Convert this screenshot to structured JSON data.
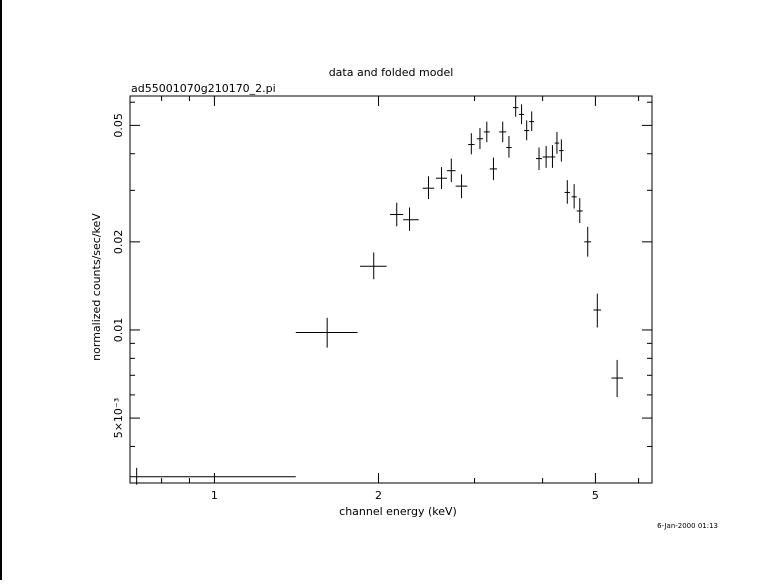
{
  "chart_data": {
    "type": "scatter",
    "title": "data and folded model",
    "subtitle": "ad55001070g210170_2.pi",
    "xlabel": "channel energy (keV)",
    "ylabel": "normalized counts/sec/keV",
    "x_scale": "log",
    "y_scale": "log",
    "xlim": [
      0.7,
      6.35
    ],
    "ylim": [
      0.003,
      0.063
    ],
    "x_ticks": [
      {
        "value": 1,
        "label": "1"
      },
      {
        "value": 2,
        "label": "2"
      },
      {
        "value": 5,
        "label": "5"
      }
    ],
    "y_ticks": [
      {
        "value": 0.005,
        "label": "5×10⁻³"
      },
      {
        "value": 0.01,
        "label": "0.01"
      },
      {
        "value": 0.02,
        "label": "0.02"
      },
      {
        "value": 0.05,
        "label": "0.05"
      }
    ],
    "grid": false,
    "series": [
      {
        "points": [
          {
            "x": 0.72,
            "xlo": 0.7,
            "xhi": 1.41,
            "y": 0.00315,
            "ylo": 0.00296,
            "yhi": 0.00338
          },
          {
            "x": 1.61,
            "xlo": 1.41,
            "xhi": 1.83,
            "y": 0.0098,
            "ylo": 0.0087,
            "yhi": 0.011
          },
          {
            "x": 1.96,
            "xlo": 1.85,
            "xhi": 2.07,
            "y": 0.0165,
            "ylo": 0.0149,
            "yhi": 0.0184
          },
          {
            "x": 2.16,
            "xlo": 2.1,
            "xhi": 2.22,
            "y": 0.0248,
            "ylo": 0.0226,
            "yhi": 0.0272
          },
          {
            "x": 2.28,
            "xlo": 2.22,
            "xhi": 2.37,
            "y": 0.0238,
            "ylo": 0.0218,
            "yhi": 0.0262
          },
          {
            "x": 2.47,
            "xlo": 2.41,
            "xhi": 2.53,
            "y": 0.0305,
            "ylo": 0.028,
            "yhi": 0.0335
          },
          {
            "x": 2.61,
            "xlo": 2.55,
            "xhi": 2.67,
            "y": 0.033,
            "ylo": 0.0303,
            "yhi": 0.036
          },
          {
            "x": 2.72,
            "xlo": 2.67,
            "xhi": 2.77,
            "y": 0.035,
            "ylo": 0.032,
            "yhi": 0.0385
          },
          {
            "x": 2.84,
            "xlo": 2.77,
            "xhi": 2.91,
            "y": 0.031,
            "ylo": 0.0282,
            "yhi": 0.034
          },
          {
            "x": 2.96,
            "xlo": 2.92,
            "xhi": 3.0,
            "y": 0.043,
            "ylo": 0.0398,
            "yhi": 0.047
          },
          {
            "x": 3.07,
            "xlo": 3.03,
            "xhi": 3.11,
            "y": 0.045,
            "ylo": 0.0415,
            "yhi": 0.049
          },
          {
            "x": 3.16,
            "xlo": 3.12,
            "xhi": 3.2,
            "y": 0.0475,
            "ylo": 0.0438,
            "yhi": 0.0515
          },
          {
            "x": 3.25,
            "xlo": 3.2,
            "xhi": 3.3,
            "y": 0.0355,
            "ylo": 0.0325,
            "yhi": 0.0388
          },
          {
            "x": 3.38,
            "xlo": 3.33,
            "xhi": 3.43,
            "y": 0.0475,
            "ylo": 0.0438,
            "yhi": 0.0515
          },
          {
            "x": 3.47,
            "xlo": 3.43,
            "xhi": 3.51,
            "y": 0.042,
            "ylo": 0.0388,
            "yhi": 0.046
          },
          {
            "x": 3.57,
            "xlo": 3.53,
            "xhi": 3.61,
            "y": 0.0575,
            "ylo": 0.0535,
            "yhi": 0.063
          },
          {
            "x": 3.66,
            "xlo": 3.62,
            "xhi": 3.7,
            "y": 0.0545,
            "ylo": 0.0505,
            "yhi": 0.059
          },
          {
            "x": 3.74,
            "xlo": 3.7,
            "xhi": 3.78,
            "y": 0.048,
            "ylo": 0.0445,
            "yhi": 0.052
          },
          {
            "x": 3.82,
            "xlo": 3.78,
            "xhi": 3.86,
            "y": 0.0515,
            "ylo": 0.0478,
            "yhi": 0.0558
          },
          {
            "x": 3.94,
            "xlo": 3.89,
            "xhi": 3.99,
            "y": 0.0385,
            "ylo": 0.0352,
            "yhi": 0.042
          },
          {
            "x": 4.06,
            "xlo": 4.0,
            "xhi": 4.12,
            "y": 0.039,
            "ylo": 0.0358,
            "yhi": 0.0425
          },
          {
            "x": 4.17,
            "xlo": 4.12,
            "xhi": 4.22,
            "y": 0.039,
            "ylo": 0.0358,
            "yhi": 0.0428
          },
          {
            "x": 4.25,
            "xlo": 4.21,
            "xhi": 4.29,
            "y": 0.0435,
            "ylo": 0.04,
            "yhi": 0.0475
          },
          {
            "x": 4.33,
            "xlo": 4.29,
            "xhi": 4.37,
            "y": 0.041,
            "ylo": 0.0376,
            "yhi": 0.0448
          },
          {
            "x": 4.44,
            "xlo": 4.39,
            "xhi": 4.49,
            "y": 0.0295,
            "ylo": 0.027,
            "yhi": 0.0325
          },
          {
            "x": 4.57,
            "xlo": 4.52,
            "xhi": 4.62,
            "y": 0.0285,
            "ylo": 0.026,
            "yhi": 0.0315
          },
          {
            "x": 4.68,
            "xlo": 4.62,
            "xhi": 4.74,
            "y": 0.0255,
            "ylo": 0.0232,
            "yhi": 0.0282
          },
          {
            "x": 4.84,
            "xlo": 4.77,
            "xhi": 4.91,
            "y": 0.02,
            "ylo": 0.0178,
            "yhi": 0.0225
          },
          {
            "x": 5.04,
            "xlo": 4.96,
            "xhi": 5.12,
            "y": 0.0117,
            "ylo": 0.0102,
            "yhi": 0.0133
          },
          {
            "x": 5.48,
            "xlo": 5.35,
            "xhi": 5.62,
            "y": 0.00685,
            "ylo": 0.0059,
            "yhi": 0.0079
          }
        ]
      }
    ],
    "timestamp": "6-Jan-2000 01:13"
  }
}
